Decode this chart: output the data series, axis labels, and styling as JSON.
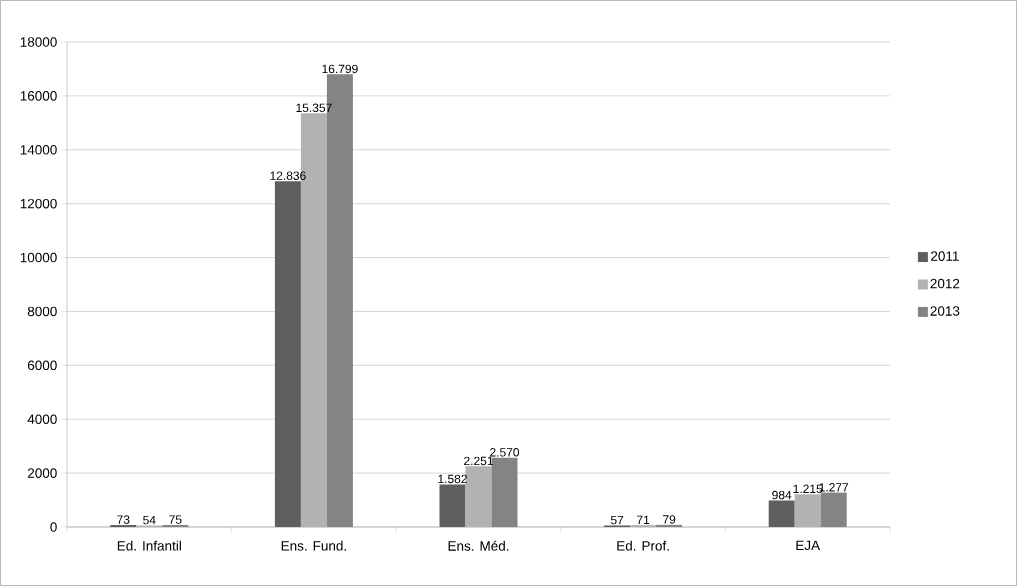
{
  "chart_data": {
    "type": "bar",
    "categories": [
      "Ed. Infantil",
      "Ens. Fund.",
      "Ens. Méd.",
      "Ed. Prof.",
      "EJA"
    ],
    "series": [
      {
        "name": "2011",
        "color": "#5f5f5f",
        "values": [
          73,
          12836,
          1582,
          57,
          984
        ],
        "value_labels": [
          "73",
          "12.836",
          "1.582",
          "57",
          "984"
        ]
      },
      {
        "name": "2012",
        "color": "#b2b2b2",
        "values": [
          54,
          15357,
          2251,
          71,
          1215
        ],
        "value_labels": [
          "54",
          "15.357",
          "2.251",
          "71",
          "1.215"
        ]
      },
      {
        "name": "2013",
        "color": "#848484",
        "values": [
          75,
          16799,
          2570,
          79,
          1277
        ],
        "value_labels": [
          "75",
          "16.799",
          "2.570",
          "79",
          "1.277"
        ]
      }
    ],
    "ylim": [
      0,
      18000
    ],
    "yticks": [
      0,
      2000,
      4000,
      6000,
      8000,
      10000,
      12000,
      14000,
      16000,
      18000
    ],
    "grid": "y",
    "legend": "right"
  }
}
